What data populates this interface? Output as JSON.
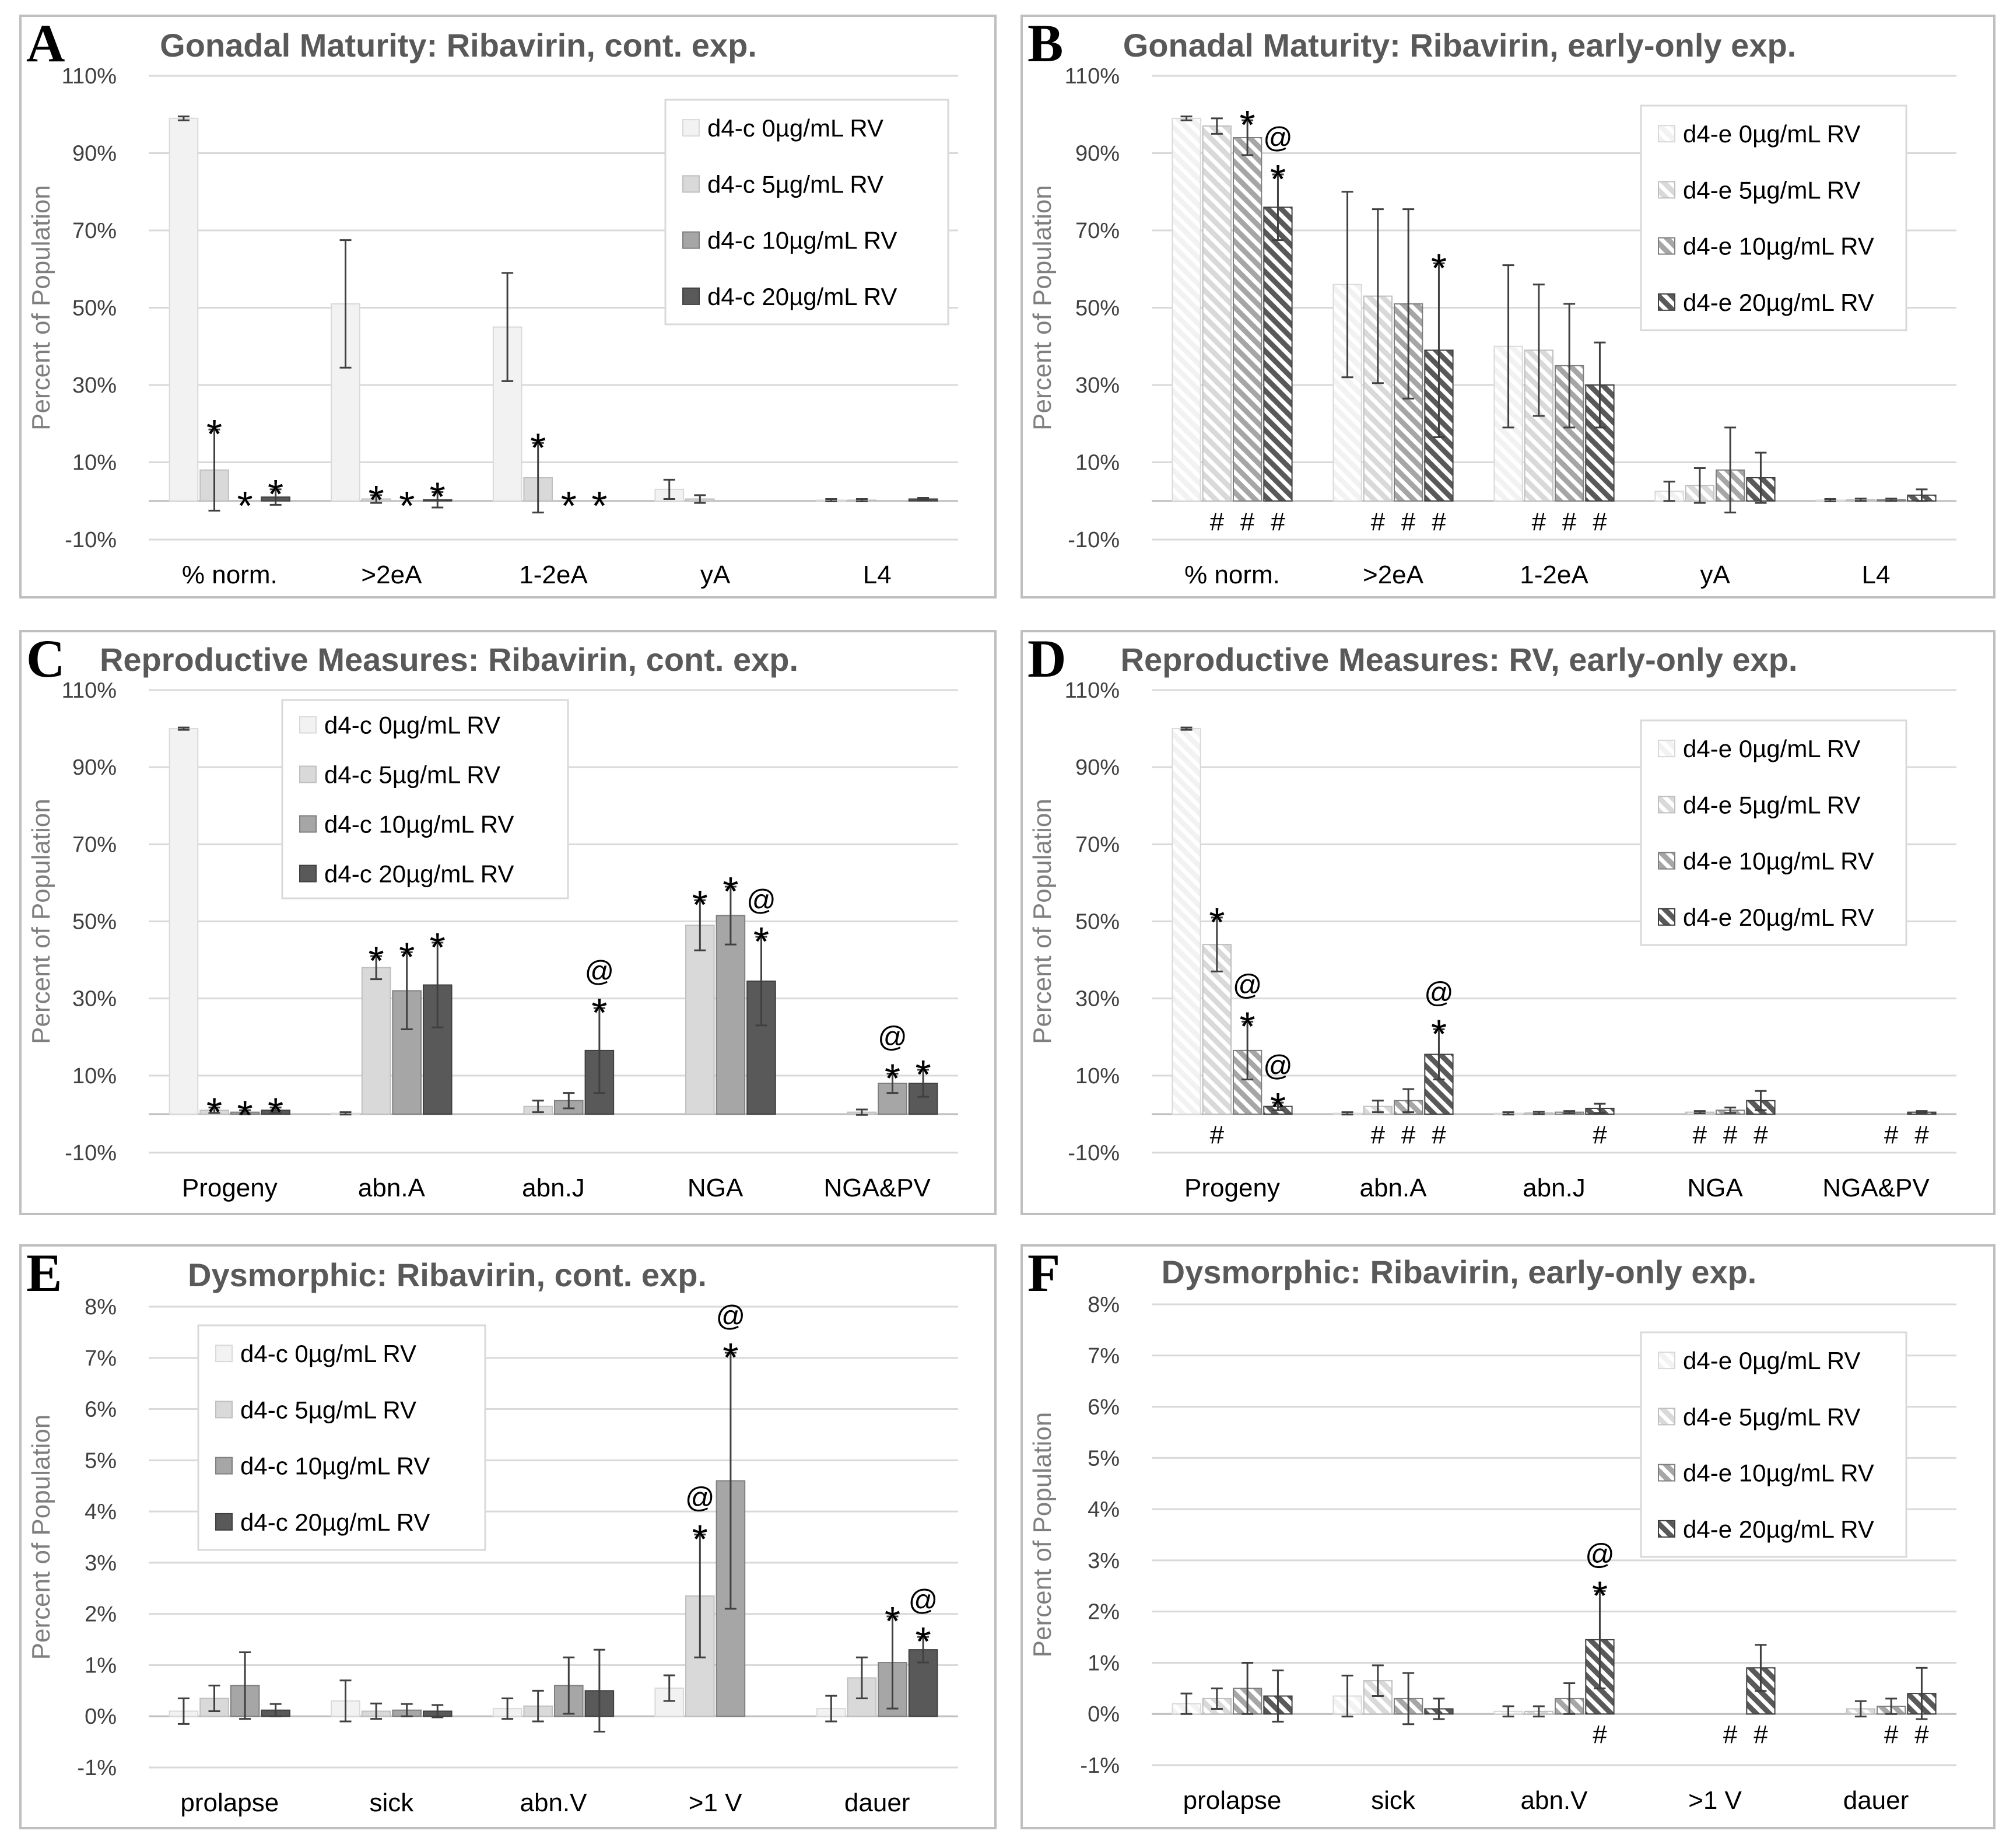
{
  "figure": {
    "colors": {
      "c0": "#f2f2f2",
      "c5": "#d9d9d9",
      "c10": "#a6a6a6",
      "c20": "#595959",
      "grid": "#d9d9d9",
      "frame": "#bfbfbf",
      "text": "#595959"
    }
  },
  "chart_data": [
    {
      "panel": "A",
      "type": "bar",
      "pattern": "solid",
      "title": "Gonadal Maturity: Ribavirin, cont. exp.",
      "ylabel": "Percent of Population",
      "ylim": [
        -10,
        110
      ],
      "yticks": [
        "110%",
        "90%",
        "70%",
        "50%",
        "30%",
        "10%",
        "-10%"
      ],
      "categories": [
        "% norm.",
        ">2eA",
        "1-2eA",
        "yA",
        "L4"
      ],
      "series": [
        {
          "name": "d4-c 0µg/mL RV",
          "values": [
            99,
            51,
            45,
            3,
            0.2
          ],
          "err": [
            0.5,
            16.5,
            14,
            2.5,
            0.3
          ]
        },
        {
          "name": "d4-c 5µg/mL RV",
          "values": [
            8,
            0.5,
            6,
            0.5,
            0.2
          ],
          "err": [
            10.5,
            1,
            9,
            1,
            0.3
          ]
        },
        {
          "name": "d4-c 10µg/mL RV",
          "values": [
            0,
            0,
            0,
            0,
            0
          ],
          "err": [
            0,
            0,
            0,
            0,
            0
          ]
        },
        {
          "name": "d4-c 20µg/mL RV",
          "values": [
            1,
            0.3,
            0,
            0,
            0.5
          ],
          "err": [
            2,
            2,
            0,
            0,
            0.3
          ]
        }
      ],
      "legend": "top-right",
      "annotations": [
        {
          "cat": 0,
          "ser": 1,
          "text": "*"
        },
        {
          "cat": 0,
          "ser": 2,
          "text": "*"
        },
        {
          "cat": 0,
          "ser": 3,
          "text": "*"
        },
        {
          "cat": 1,
          "ser": 1,
          "text": "*"
        },
        {
          "cat": 1,
          "ser": 2,
          "text": "*"
        },
        {
          "cat": 1,
          "ser": 3,
          "text": "*"
        },
        {
          "cat": 2,
          "ser": 1,
          "text": "*"
        },
        {
          "cat": 2,
          "ser": 2,
          "text": "*"
        },
        {
          "cat": 2,
          "ser": 3,
          "text": "*"
        }
      ],
      "hashes": []
    },
    {
      "panel": "B",
      "type": "bar",
      "pattern": "hatched",
      "title": "Gonadal Maturity: Ribavirin, early-only exp.",
      "ylabel": "Percent of Population",
      "ylim": [
        -10,
        110
      ],
      "yticks": [
        "110%",
        "90%",
        "70%",
        "50%",
        "30%",
        "10%",
        "-10%"
      ],
      "categories": [
        "% norm.",
        ">2eA",
        "1-2eA",
        "yA",
        "L4"
      ],
      "series": [
        {
          "name": "d4-e 0µg/mL RV",
          "values": [
            99,
            56,
            40,
            2.5,
            0.2
          ],
          "err": [
            0.5,
            24,
            21,
            2.5,
            0.3
          ]
        },
        {
          "name": "d4-e 5µg/mL RV",
          "values": [
            97,
            53,
            39,
            4,
            0.3
          ],
          "err": [
            2,
            22.5,
            17,
            4.5,
            0.3
          ]
        },
        {
          "name": "d4-e 10µg/mL RV",
          "values": [
            94,
            51,
            35,
            8,
            0.3
          ],
          "err": [
            4.5,
            24.5,
            16,
            11,
            0.3
          ]
        },
        {
          "name": "d4-e 20µg/mL RV",
          "values": [
            76,
            39,
            30,
            6,
            1.5
          ],
          "err": [
            8.5,
            22.5,
            11,
            6.5,
            1.5
          ]
        }
      ],
      "legend": "top-right",
      "annotations": [
        {
          "cat": 0,
          "ser": 2,
          "text": "*"
        },
        {
          "cat": 0,
          "ser": 3,
          "text": "*@"
        },
        {
          "cat": 1,
          "ser": 3,
          "text": "*"
        }
      ],
      "hashes": [
        {
          "cat": 0,
          "ser": 1
        },
        {
          "cat": 0,
          "ser": 2
        },
        {
          "cat": 0,
          "ser": 3
        },
        {
          "cat": 1,
          "ser": 1
        },
        {
          "cat": 1,
          "ser": 2
        },
        {
          "cat": 1,
          "ser": 3
        },
        {
          "cat": 2,
          "ser": 1
        },
        {
          "cat": 2,
          "ser": 2
        },
        {
          "cat": 2,
          "ser": 3
        }
      ]
    },
    {
      "panel": "C",
      "type": "bar",
      "pattern": "solid",
      "title": "Reproductive Measures: Ribavirin, cont. exp.",
      "ylabel": "Percent of Population",
      "ylim": [
        -10,
        110
      ],
      "yticks": [
        "110%",
        "90%",
        "70%",
        "50%",
        "30%",
        "10%",
        "-10%"
      ],
      "categories": [
        "Progeny",
        "abn.A",
        "abn.J",
        "NGA",
        "NGA&PV"
      ],
      "series": [
        {
          "name": "d4-c 0µg/mL RV",
          "values": [
            100,
            0.2,
            0,
            0,
            0
          ],
          "err": [
            0.3,
            0.3,
            0,
            0,
            0
          ]
        },
        {
          "name": "d4-c 5µg/mL RV",
          "values": [
            1,
            38,
            2,
            49,
            0.5
          ],
          "err": [
            0.7,
            3,
            1.5,
            6.5,
            0.7
          ]
        },
        {
          "name": "d4-c 10µg/mL RV",
          "values": [
            0.5,
            32,
            3.5,
            51.5,
            8
          ],
          "err": [
            0.5,
            10,
            2,
            7.5,
            2.5
          ]
        },
        {
          "name": "d4-c 20µg/mL RV",
          "values": [
            1,
            33.5,
            16.5,
            34.5,
            8
          ],
          "err": [
            0.7,
            11,
            11,
            11.5,
            3.5
          ]
        }
      ],
      "legend": "top-left",
      "annotations": [
        {
          "cat": 0,
          "ser": 1,
          "text": "*"
        },
        {
          "cat": 0,
          "ser": 2,
          "text": "*"
        },
        {
          "cat": 0,
          "ser": 3,
          "text": "*"
        },
        {
          "cat": 1,
          "ser": 1,
          "text": "*"
        },
        {
          "cat": 1,
          "ser": 2,
          "text": "*"
        },
        {
          "cat": 1,
          "ser": 3,
          "text": "*"
        },
        {
          "cat": 2,
          "ser": 3,
          "text": "*@"
        },
        {
          "cat": 3,
          "ser": 1,
          "text": "*"
        },
        {
          "cat": 3,
          "ser": 2,
          "text": "*"
        },
        {
          "cat": 3,
          "ser": 3,
          "text": "*@"
        },
        {
          "cat": 4,
          "ser": 2,
          "text": "*@"
        },
        {
          "cat": 4,
          "ser": 3,
          "text": "*"
        }
      ],
      "hashes": []
    },
    {
      "panel": "D",
      "type": "bar",
      "pattern": "hatched",
      "title": "Reproductive Measures: RV, early-only exp.",
      "ylabel": "Percent of Population",
      "ylim": [
        -10,
        110
      ],
      "yticks": [
        "110%",
        "90%",
        "70%",
        "50%",
        "30%",
        "10%",
        "-10%"
      ],
      "categories": [
        "Progeny",
        "abn.A",
        "abn.J",
        "NGA",
        "NGA&PV"
      ],
      "series": [
        {
          "name": "d4-e 0µg/mL RV",
          "values": [
            100,
            0.2,
            0.2,
            0,
            0
          ],
          "err": [
            0.3,
            0.3,
            0.3,
            0,
            0
          ]
        },
        {
          "name": "d4-e 5µg/mL RV",
          "values": [
            44,
            2,
            0.3,
            0.5,
            0
          ],
          "err": [
            7,
            1.5,
            0.3,
            0.3,
            0
          ]
        },
        {
          "name": "d4-e 10µg/mL RV",
          "values": [
            16.5,
            3.5,
            0.5,
            1,
            0
          ],
          "err": [
            7.5,
            3,
            0.3,
            0.7,
            0
          ]
        },
        {
          "name": "d4-e 20µg/mL RV",
          "values": [
            2,
            15.5,
            1.5,
            3.5,
            0.5
          ],
          "err": [
            1,
            6.5,
            1.2,
            2.5,
            0.3
          ]
        }
      ],
      "legend": "top-right",
      "annotations": [
        {
          "cat": 0,
          "ser": 1,
          "text": "*"
        },
        {
          "cat": 0,
          "ser": 2,
          "text": "*@"
        },
        {
          "cat": 0,
          "ser": 3,
          "text": "*@"
        },
        {
          "cat": 1,
          "ser": 3,
          "text": "*@"
        }
      ],
      "hashes": [
        {
          "cat": 0,
          "ser": 1
        },
        {
          "cat": 1,
          "ser": 1
        },
        {
          "cat": 1,
          "ser": 2
        },
        {
          "cat": 1,
          "ser": 3
        },
        {
          "cat": 2,
          "ser": 3
        },
        {
          "cat": 3,
          "ser": 1
        },
        {
          "cat": 3,
          "ser": 2
        },
        {
          "cat": 3,
          "ser": 3
        },
        {
          "cat": 4,
          "ser": 2
        },
        {
          "cat": 4,
          "ser": 3
        }
      ]
    },
    {
      "panel": "E",
      "type": "bar",
      "pattern": "solid",
      "title": "Dysmorphic: Ribavirin, cont. exp.",
      "ylabel": "Percent of Population",
      "ylim": [
        -1,
        8
      ],
      "yticks": [
        "8%",
        "7%",
        "6%",
        "5%",
        "4%",
        "3%",
        "2%",
        "1%",
        "0%",
        "-1%"
      ],
      "categories": [
        "prolapse",
        "sick",
        "abn.V",
        ">1 V",
        "dauer"
      ],
      "series": [
        {
          "name": "d4-c 0µg/mL RV",
          "values": [
            0.1,
            0.3,
            0.15,
            0.55,
            0.15
          ],
          "err": [
            0.25,
            0.4,
            0.2,
            0.25,
            0.25
          ]
        },
        {
          "name": "d4-c 5µg/mL RV",
          "values": [
            0.35,
            0.1,
            0.2,
            2.35,
            0.75
          ],
          "err": [
            0.25,
            0.15,
            0.3,
            1.2,
            0.4
          ]
        },
        {
          "name": "d4-c 10µg/mL RV",
          "values": [
            0.6,
            0.12,
            0.6,
            4.6,
            1.05
          ],
          "err": [
            0.65,
            0.12,
            0.55,
            2.5,
            0.9
          ]
        },
        {
          "name": "d4-c 20µg/mL RV",
          "values": [
            0.12,
            0.1,
            0.5,
            0,
            1.3
          ],
          "err": [
            0.12,
            0.12,
            0.8,
            0,
            0.25
          ]
        }
      ],
      "legend": "top-left",
      "annotations": [
        {
          "cat": 3,
          "ser": 1,
          "text": "*@"
        },
        {
          "cat": 3,
          "ser": 2,
          "text": "*@"
        },
        {
          "cat": 4,
          "ser": 2,
          "text": "*"
        },
        {
          "cat": 4,
          "ser": 3,
          "text": "*@"
        }
      ],
      "hashes": []
    },
    {
      "panel": "F",
      "type": "bar",
      "pattern": "hatched",
      "title": "Dysmorphic: Ribavirin, early-only exp.",
      "ylabel": "Percent of Population",
      "ylim": [
        -1,
        8
      ],
      "yticks": [
        "8%",
        "7%",
        "6%",
        "5%",
        "4%",
        "3%",
        "2%",
        "1%",
        "0%",
        "-1%"
      ],
      "categories": [
        "prolapse",
        "sick",
        "abn.V",
        ">1 V",
        "dauer"
      ],
      "series": [
        {
          "name": "d4-e 0µg/mL RV",
          "values": [
            0.2,
            0.35,
            0.05,
            0,
            0
          ],
          "err": [
            0.2,
            0.4,
            0.1,
            0,
            0
          ]
        },
        {
          "name": "d4-e 5µg/mL RV",
          "values": [
            0.3,
            0.65,
            0.05,
            0,
            0.1
          ],
          "err": [
            0.2,
            0.3,
            0.1,
            0,
            0.15
          ]
        },
        {
          "name": "d4-e 10µg/mL RV",
          "values": [
            0.5,
            0.3,
            0.3,
            0,
            0.15
          ],
          "err": [
            0.5,
            0.5,
            0.3,
            0,
            0.15
          ]
        },
        {
          "name": "d4-e 20µg/mL RV",
          "values": [
            0.35,
            0.1,
            1.45,
            0.9,
            0.4
          ],
          "err": [
            0.5,
            0.2,
            0.95,
            0.45,
            0.5
          ]
        }
      ],
      "legend": "top-right",
      "annotations": [
        {
          "cat": 2,
          "ser": 3,
          "text": "*@"
        }
      ],
      "hashes": [
        {
          "cat": 2,
          "ser": 3
        },
        {
          "cat": 3,
          "ser": 2
        },
        {
          "cat": 3,
          "ser": 3
        },
        {
          "cat": 4,
          "ser": 2
        },
        {
          "cat": 4,
          "ser": 3
        }
      ]
    }
  ]
}
